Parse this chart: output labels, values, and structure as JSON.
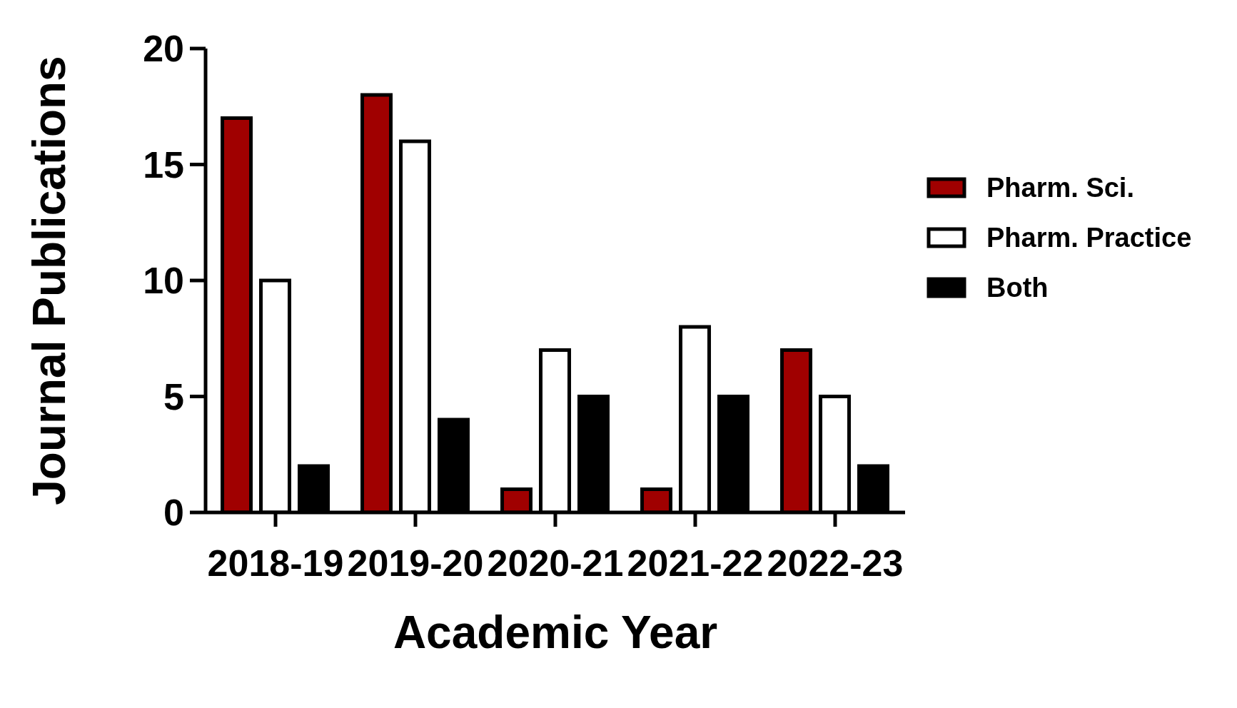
{
  "chart_data": {
    "type": "bar",
    "xlabel": "Academic Year",
    "ylabel": "Journal Publications",
    "categories": [
      "2018-19",
      "2019-20",
      "2020-21",
      "2021-22",
      "2022-23"
    ],
    "series": [
      {
        "name": "Pharm. Sci.",
        "color": "#a00000",
        "values": [
          17,
          18,
          1,
          1,
          7
        ]
      },
      {
        "name": "Pharm. Practice",
        "color": "#ffffff",
        "values": [
          10,
          16,
          7,
          8,
          5
        ]
      },
      {
        "name": "Both",
        "color": "#000000",
        "values": [
          2,
          4,
          5,
          5,
          2
        ]
      }
    ],
    "ylim": [
      0,
      20
    ],
    "yticks": [
      0,
      5,
      10,
      15,
      20
    ],
    "grid": false,
    "legend": "top right"
  }
}
